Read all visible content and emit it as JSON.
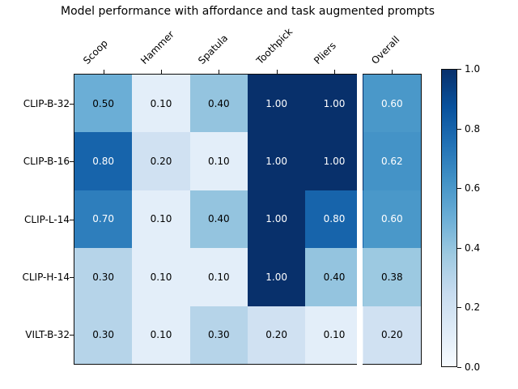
{
  "title": "Model performance with affordance and task augmented prompts",
  "chart_data": {
    "type": "heatmap",
    "columns": [
      "Scoop",
      "Hammer",
      "Spatula",
      "Toothpick",
      "Pliers",
      "Overall"
    ],
    "rows": [
      "CLIP-B-32",
      "CLIP-B-16",
      "CLIP-L-14",
      "CLIP-H-14",
      "VILT-B-32"
    ],
    "values": [
      [
        0.5,
        0.1,
        0.4,
        1.0,
        1.0,
        0.6
      ],
      [
        0.8,
        0.2,
        0.1,
        1.0,
        1.0,
        0.62
      ],
      [
        0.7,
        0.1,
        0.4,
        1.0,
        0.8,
        0.6
      ],
      [
        0.3,
        0.1,
        0.1,
        1.0,
        0.4,
        0.38
      ],
      [
        0.3,
        0.1,
        0.3,
        0.2,
        0.1,
        0.2
      ]
    ],
    "value_decimals": 2,
    "vmin": 0.0,
    "vmax": 1.0,
    "separator_before_column": "Overall",
    "colormap": {
      "name": "Blues",
      "stops": [
        {
          "pos": 0.0,
          "color": "#f7fbff"
        },
        {
          "pos": 0.125,
          "color": "#deebf7"
        },
        {
          "pos": 0.25,
          "color": "#c6dbef"
        },
        {
          "pos": 0.375,
          "color": "#9ecae1"
        },
        {
          "pos": 0.5,
          "color": "#6baed6"
        },
        {
          "pos": 0.625,
          "color": "#4292c6"
        },
        {
          "pos": 0.75,
          "color": "#2171b5"
        },
        {
          "pos": 0.875,
          "color": "#08519c"
        },
        {
          "pos": 1.0,
          "color": "#08306b"
        }
      ]
    },
    "annotation_colors": {
      "on_dark": "#ffffff",
      "on_light": "#000000"
    },
    "colorbar": {
      "tick_labels": [
        "1.0",
        "0.8",
        "0.6",
        "0.4",
        "0.2",
        "0.0"
      ],
      "tick_values": [
        1.0,
        0.8,
        0.6,
        0.4,
        0.2,
        0.0
      ]
    }
  }
}
